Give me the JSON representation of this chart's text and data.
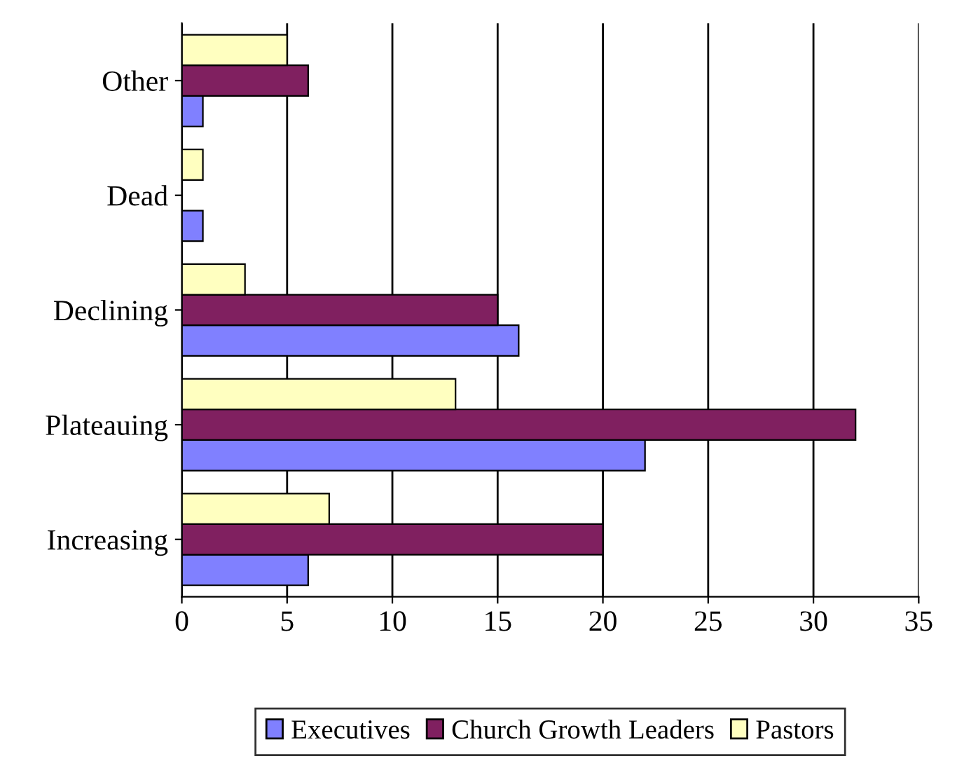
{
  "chart_data": {
    "type": "bar",
    "orientation": "horizontal",
    "categories": [
      "Other",
      "Dead",
      "Declining",
      "Plateauing",
      "Increasing"
    ],
    "series": [
      {
        "name": "Executives",
        "color": "#8080ff",
        "values": [
          1,
          1,
          16,
          22,
          6
        ]
      },
      {
        "name": "Church Growth Leaders",
        "color": "#802060",
        "values": [
          6,
          0,
          15,
          32,
          20
        ]
      },
      {
        "name": "Pastors",
        "color": "#ffffc0",
        "values": [
          5,
          1,
          3,
          13,
          7
        ]
      }
    ],
    "xlim": [
      0,
      35
    ],
    "xticks": [
      0,
      5,
      10,
      15,
      20,
      25,
      30,
      35
    ],
    "grid": "x",
    "legend": "bottom"
  }
}
